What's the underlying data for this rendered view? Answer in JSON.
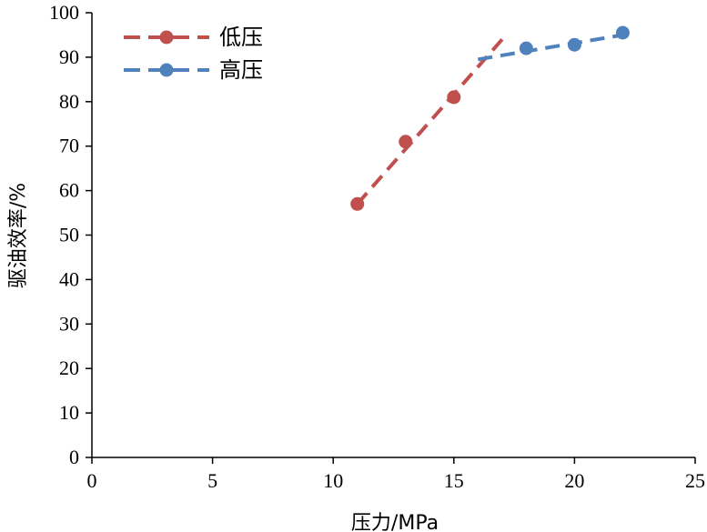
{
  "chart_data": {
    "type": "line",
    "title": "",
    "xlabel": "压力/MPa",
    "ylabel": "驱油效率/%",
    "xlim": [
      0,
      25
    ],
    "ylim": [
      0,
      100
    ],
    "xticks": [
      0,
      5,
      10,
      15,
      20,
      25
    ],
    "yticks": [
      0,
      10,
      20,
      30,
      40,
      50,
      60,
      70,
      80,
      90,
      100
    ],
    "grid": false,
    "legend_position": "top-left",
    "series": [
      {
        "name": "低压",
        "color": "#c0504d",
        "line_style": "dashed",
        "marker": "circle",
        "points": [
          [
            11,
            57
          ],
          [
            13,
            71
          ],
          [
            15,
            81
          ]
        ],
        "trend_line": [
          [
            11,
            57
          ],
          [
            17,
            94
          ]
        ]
      },
      {
        "name": "高压",
        "color": "#4f81bd",
        "line_style": "dashed",
        "marker": "circle",
        "points": [
          [
            18,
            92
          ],
          [
            20,
            92.8
          ],
          [
            22,
            95.5
          ]
        ],
        "trend_line": [
          [
            16,
            89.5
          ],
          [
            22,
            95
          ]
        ]
      }
    ]
  }
}
